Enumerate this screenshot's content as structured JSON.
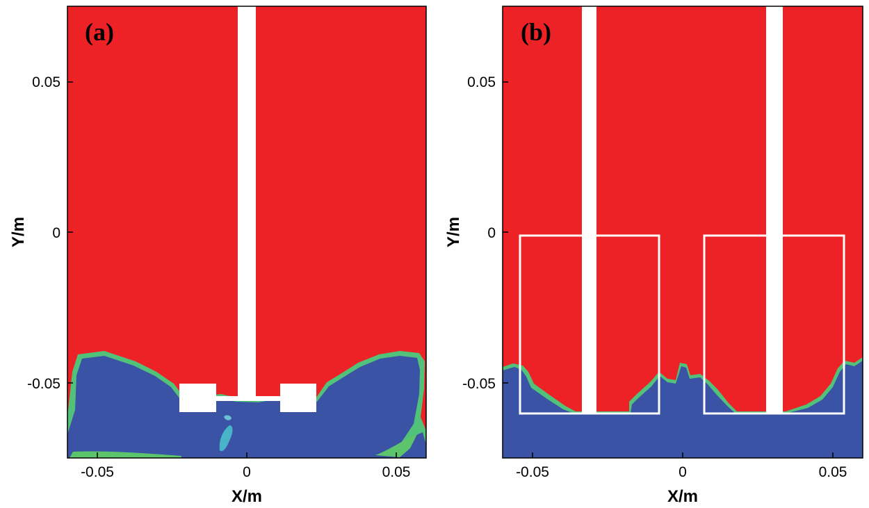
{
  "chart_data": [
    {
      "panel": "(a)",
      "type": "contour",
      "xlabel": "X/m",
      "ylabel": "Y/m",
      "xlim": [
        -0.06,
        0.06
      ],
      "ylim": [
        -0.075,
        0.075
      ],
      "x_ticks": [
        -0.05,
        0,
        0.05
      ],
      "x_tick_labels": [
        "-0.05",
        "0",
        "0.05"
      ],
      "y_ticks": [
        0.05,
        0,
        -0.05
      ],
      "y_tick_labels": [
        "0.05",
        "0",
        "-0.05"
      ],
      "colors": {
        "upper_phase": "#ec2227",
        "lower_phase": "#3a53a4",
        "interface": "#4dc870"
      }
    },
    {
      "panel": "(b)",
      "type": "contour",
      "xlabel": "X/m",
      "ylabel": "Y/m",
      "xlim": [
        -0.06,
        0.06
      ],
      "ylim": [
        -0.075,
        0.075
      ],
      "x_ticks": [
        -0.05,
        0,
        0.05
      ],
      "x_tick_labels": [
        "-0.05",
        "0",
        "0.05"
      ],
      "y_ticks": [
        0.05,
        0,
        -0.05
      ],
      "y_tick_labels": [
        "0.05",
        "0",
        "-0.05"
      ],
      "colors": {
        "upper_phase": "#ec2227",
        "lower_phase": "#3a53a4",
        "interface": "#4dc870"
      }
    }
  ]
}
